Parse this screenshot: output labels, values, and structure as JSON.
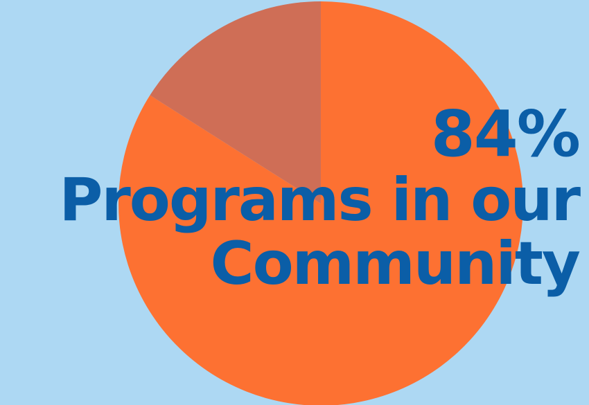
{
  "chart_data": {
    "type": "pie",
    "values": [
      84,
      16
    ],
    "categories": [
      "",
      ""
    ],
    "colors": [
      "#fd7132",
      "#cf6e56"
    ],
    "background": "#add8f3",
    "headline": {
      "value_text": "84%",
      "line1": "Programs in our",
      "line2": "Community"
    }
  }
}
